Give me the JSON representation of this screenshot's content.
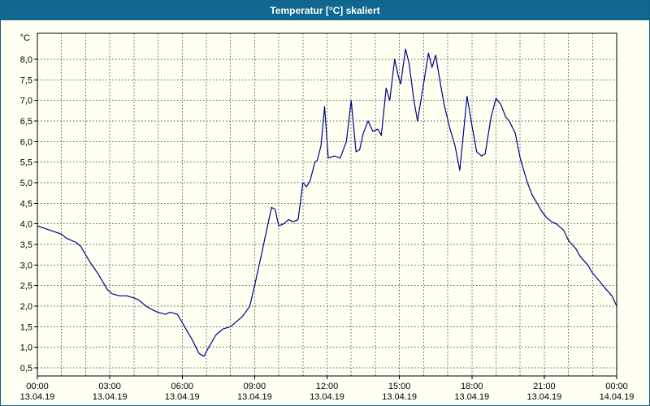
{
  "title": "Temperatur [°C] skaliert",
  "colors": {
    "title_bar": "#11688e",
    "background": "#fffff2",
    "line": "#00008b",
    "grid": "#2d6e5e",
    "axis": "#000000"
  },
  "chart_data": {
    "type": "line",
    "title": "Temperatur [°C] skaliert",
    "ylabel": "°C",
    "xlabel": "",
    "grid": true,
    "legend": "none",
    "ylim": [
      0.3,
      8.65
    ],
    "xlim_hours": [
      0,
      24
    ],
    "y_ticks": [
      {
        "v": 0.5,
        "label": "0,5"
      },
      {
        "v": 1.0,
        "label": "1,0"
      },
      {
        "v": 1.5,
        "label": "1,5"
      },
      {
        "v": 2.0,
        "label": "2,0"
      },
      {
        "v": 2.5,
        "label": "2,5"
      },
      {
        "v": 3.0,
        "label": "3,0"
      },
      {
        "v": 3.5,
        "label": "3,5"
      },
      {
        "v": 4.0,
        "label": "4,0"
      },
      {
        "v": 4.5,
        "label": "4,5"
      },
      {
        "v": 5.0,
        "label": "5,0"
      },
      {
        "v": 5.5,
        "label": "5,5"
      },
      {
        "v": 6.0,
        "label": "6,0"
      },
      {
        "v": 6.5,
        "label": "6,5"
      },
      {
        "v": 7.0,
        "label": "7,0"
      },
      {
        "v": 7.5,
        "label": "7,5"
      },
      {
        "v": 8.0,
        "label": "8,0"
      }
    ],
    "x_ticks": [
      {
        "h": 0,
        "time": "00:00",
        "date": "13.04.19"
      },
      {
        "h": 3,
        "time": "03:00",
        "date": "13.04.19"
      },
      {
        "h": 6,
        "time": "06:00",
        "date": "13.04.19"
      },
      {
        "h": 9,
        "time": "09:00",
        "date": "13.04.19"
      },
      {
        "h": 12,
        "time": "12:00",
        "date": "13.04.19"
      },
      {
        "h": 15,
        "time": "15:00",
        "date": "13.04.19"
      },
      {
        "h": 18,
        "time": "18:00",
        "date": "13.04.19"
      },
      {
        "h": 21,
        "time": "21:00",
        "date": "13.04.19"
      },
      {
        "h": 24,
        "time": "00:00",
        "date": "14.04.19"
      }
    ],
    "minor_x_grid_hours": 1,
    "series": [
      {
        "name": "Temperatur",
        "x": [
          0,
          0.25,
          0.5,
          0.75,
          1.0,
          1.2,
          1.4,
          1.6,
          1.8,
          2.0,
          2.2,
          2.5,
          2.7,
          2.9,
          3.1,
          3.4,
          3.7,
          4.0,
          4.2,
          4.5,
          4.8,
          5.0,
          5.3,
          5.5,
          5.8,
          6.0,
          6.2,
          6.4,
          6.7,
          6.9,
          7.1,
          7.4,
          7.7,
          8.0,
          8.2,
          8.5,
          8.8,
          9.0,
          9.3,
          9.5,
          9.7,
          9.85,
          10.0,
          10.2,
          10.4,
          10.6,
          10.8,
          11.0,
          11.15,
          11.3,
          11.5,
          11.6,
          11.75,
          11.9,
          12.05,
          12.3,
          12.55,
          12.8,
          13.0,
          13.2,
          13.35,
          13.5,
          13.7,
          13.9,
          14.1,
          14.25,
          14.45,
          14.6,
          14.8,
          14.95,
          15.05,
          15.25,
          15.4,
          15.6,
          15.75,
          16.0,
          16.2,
          16.35,
          16.5,
          16.7,
          16.85,
          17.1,
          17.3,
          17.5,
          17.65,
          17.8,
          18.0,
          18.2,
          18.4,
          18.55,
          18.8,
          19.0,
          19.2,
          19.4,
          19.55,
          19.8,
          20.0,
          20.3,
          20.5,
          20.7,
          20.9,
          21.1,
          21.3,
          21.5,
          21.8,
          22.0,
          22.3,
          22.5,
          22.8,
          23.0,
          23.3,
          23.5,
          23.8,
          24.0
        ],
        "y": [
          3.95,
          3.9,
          3.85,
          3.8,
          3.75,
          3.65,
          3.6,
          3.55,
          3.45,
          3.25,
          3.05,
          2.8,
          2.6,
          2.4,
          2.3,
          2.25,
          2.25,
          2.2,
          2.15,
          2.0,
          1.9,
          1.85,
          1.8,
          1.85,
          1.8,
          1.6,
          1.4,
          1.2,
          0.85,
          0.78,
          1.0,
          1.3,
          1.45,
          1.5,
          1.6,
          1.75,
          2.0,
          2.5,
          3.3,
          3.85,
          4.4,
          4.35,
          3.95,
          4.0,
          4.1,
          4.05,
          4.1,
          5.0,
          4.9,
          5.05,
          5.5,
          5.55,
          5.9,
          6.85,
          5.6,
          5.65,
          5.6,
          6.0,
          7.0,
          5.75,
          5.8,
          6.2,
          6.5,
          6.25,
          6.3,
          6.15,
          7.3,
          7.0,
          8.0,
          7.6,
          7.4,
          8.25,
          7.9,
          7.0,
          6.5,
          7.4,
          8.15,
          7.8,
          8.1,
          7.4,
          6.9,
          6.3,
          5.9,
          5.3,
          6.2,
          7.1,
          6.4,
          5.75,
          5.65,
          5.7,
          6.6,
          7.05,
          6.9,
          6.6,
          6.5,
          6.2,
          5.6,
          5.0,
          4.7,
          4.5,
          4.3,
          4.15,
          4.05,
          4.0,
          3.85,
          3.6,
          3.4,
          3.2,
          3.0,
          2.8,
          2.6,
          2.45,
          2.25,
          2.0
        ]
      }
    ]
  }
}
